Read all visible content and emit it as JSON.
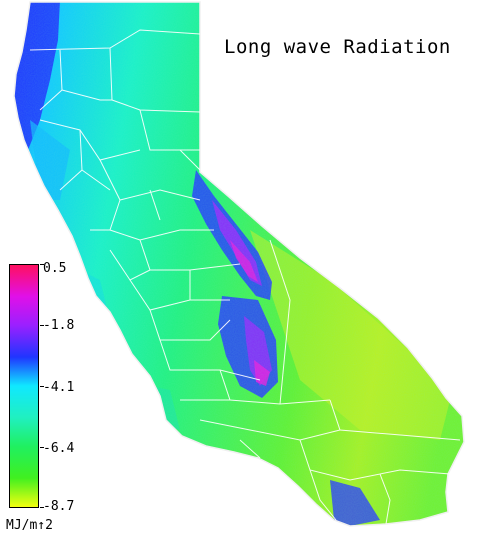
{
  "map": {
    "title": "Long wave Radiation",
    "colors": {
      "ocean_background": "#ffffff",
      "state_border": "#ffffff",
      "max_color": "#ff1060",
      "high_color": "#9a20ff",
      "mid_high_color": "#2035ff",
      "mid_color": "#10e8ff",
      "mid_low_color": "#20f060",
      "low_color": "#40f020",
      "min_color": "#f2ff10"
    }
  },
  "legend": {
    "labels": [
      "0.5",
      "-1.8",
      "-4.1",
      "-6.4",
      "-8.7"
    ],
    "unit": "MJ/m↑2",
    "colors": [
      "#ff1060",
      "#e010e8",
      "#9a20ff",
      "#2035ff",
      "#10e8ff",
      "#20f0c0",
      "#20f060",
      "#40f020",
      "#f2ff10"
    ]
  }
}
